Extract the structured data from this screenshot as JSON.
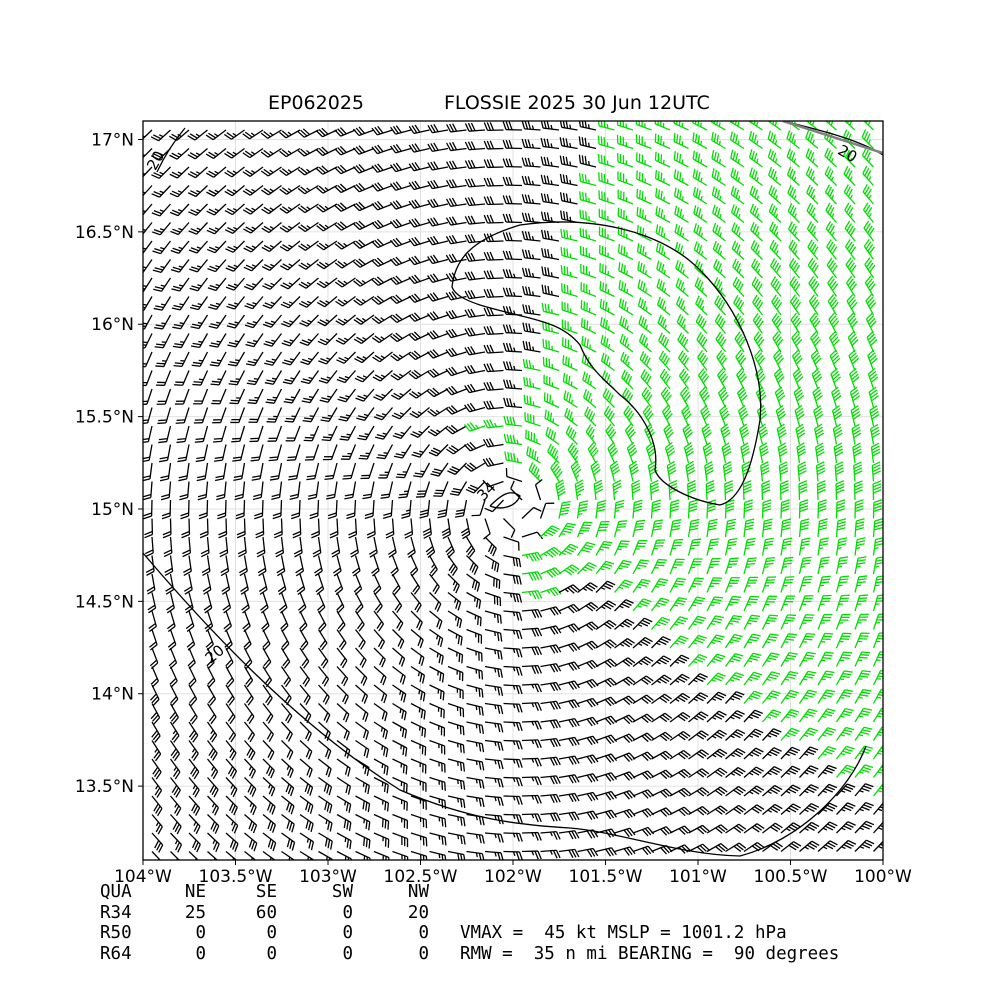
{
  "title": {
    "left": "EP062025",
    "right": "FLOSSIE 2025 30 Jun 12UTC"
  },
  "colors": {
    "weak_barbs": "#000000",
    "ts_barbs": "#00dd00",
    "strong_barbs": "#e8b820",
    "contours": "#000000",
    "coast": "#808080"
  },
  "chart_data": {
    "type": "wind barb map",
    "xlim": [
      -104,
      -100
    ],
    "ylim": [
      13.1,
      17.1
    ],
    "x_ticks": [
      -104,
      -103.5,
      -103,
      -102.5,
      -102,
      -101.5,
      -101,
      -100.5,
      -100
    ],
    "x_tick_labels": [
      "104°W",
      "103.5°W",
      "103°W",
      "102.5°W",
      "102°W",
      "101.5°W",
      "101°W",
      "100.5°W",
      "100°W"
    ],
    "y_ticks": [
      13.5,
      14,
      14.5,
      15,
      15.5,
      16,
      16.5,
      17
    ],
    "y_tick_labels": [
      "13.5°N",
      "14°N",
      "14.5°N",
      "15°N",
      "15.5°N",
      "16°N",
      "16.5°N",
      "17°N"
    ],
    "grid": true,
    "storm_center": {
      "lon": -102.0,
      "lat": 15.0
    },
    "contour_labels": [
      "20",
      "20",
      "20",
      "34"
    ],
    "contour_levels_kt": [
      20,
      34
    ],
    "barb_thresholds_kt": {
      "green": 34,
      "gold": 50
    }
  },
  "table": {
    "header": [
      "QUA",
      "NE",
      "SE",
      "SW",
      "NW"
    ],
    "rows": [
      {
        "label": "R34",
        "values": [
          "25",
          "60",
          "0",
          "20"
        ]
      },
      {
        "label": "R50",
        "values": [
          "0",
          "0",
          "0",
          "0"
        ]
      },
      {
        "label": "R64",
        "values": [
          "0",
          "0",
          "0",
          "0"
        ]
      }
    ]
  },
  "info": {
    "line1": "VMAX =  45 kt MSLP = 1001.2 hPa",
    "line2": "RMW =  35 n mi BEARING =  90 degrees"
  }
}
